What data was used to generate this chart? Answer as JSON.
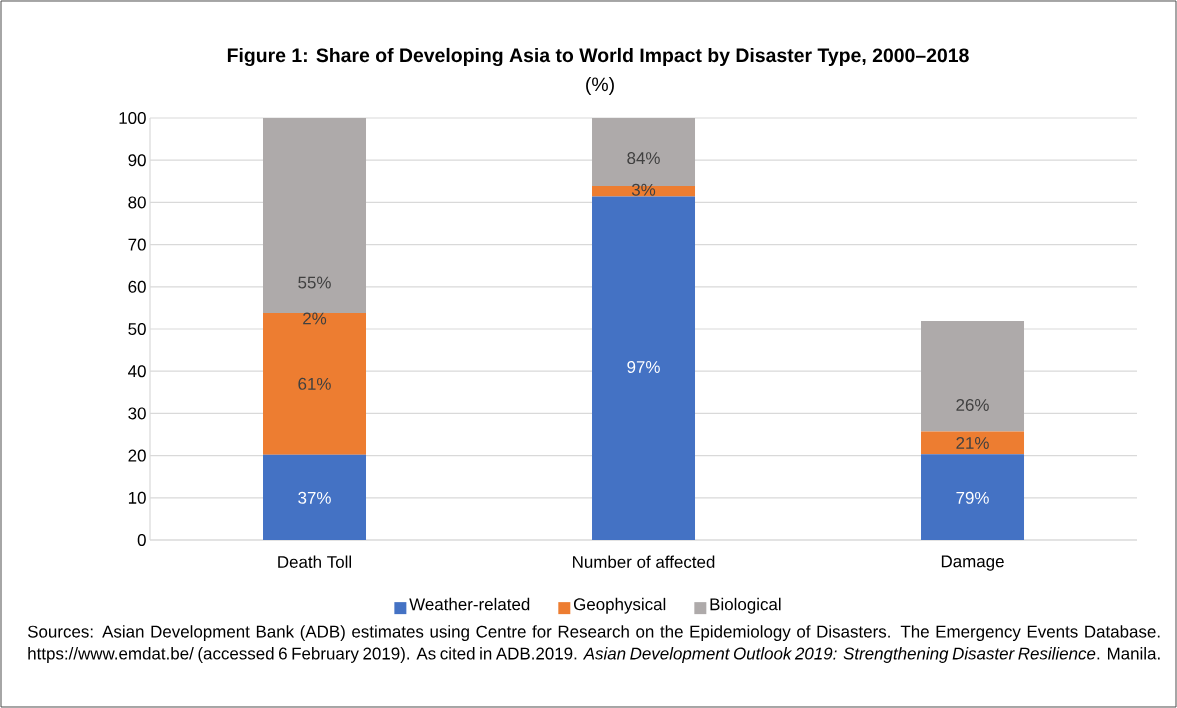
{
  "chart_data": {
    "type": "bar",
    "stacked": true,
    "title": "Figure 1: Share of Developing Asia to World Impact by Disaster Type, 2000–2018",
    "subtitle": "(%)",
    "categories": [
      "Death Toll",
      "Number of affected",
      "Damage"
    ],
    "series": [
      {
        "name": "Weather-related",
        "color": "#4472c4",
        "values": [
          20.2,
          81.4,
          20.3
        ]
      },
      {
        "name": "Geophysical",
        "color": "#ed7d31",
        "values": [
          33.6,
          2.5,
          5.4
        ]
      },
      {
        "name": "Biological",
        "color": "#aeaaaa",
        "values": [
          46.2,
          16.1,
          26.2
        ]
      }
    ],
    "ylim": [
      0,
      100
    ],
    "yticks": [
      0,
      10,
      20,
      30,
      40,
      50,
      60,
      70,
      80,
      90,
      100
    ],
    "grid": "y",
    "legend": "bottom",
    "annotations": [
      "37%",
      "61%",
      "2%",
      "55%",
      "97%",
      "3%",
      "84%",
      "79%",
      "21%",
      "26%",
      "Sources: Asian Development Bank (ADB) estimates using Centre for Research on the Epidemiology of Disasters. The Emergency Events Database. https://www.emdat.be/ (accessed 6 February 2019). As cited in ADB.2019. *Asian Development Outlook 2019: Strengthening Disaster Resilience*. Manila."
    ]
  }
}
